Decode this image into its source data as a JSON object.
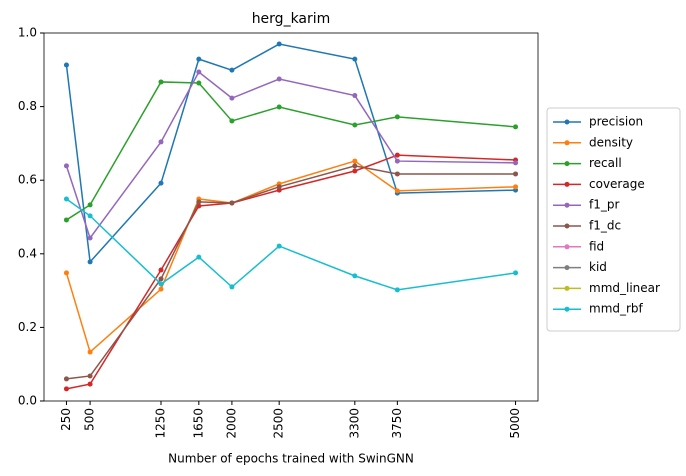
{
  "chart_data": {
    "type": "line",
    "title": "herg_karim",
    "xlabel": "Number of epochs trained with SwinGNN",
    "x": [
      250,
      500,
      1250,
      1650,
      2000,
      2500,
      3300,
      3750,
      5000
    ],
    "xlim": [
      12.5,
      5237.5
    ],
    "xticks": [
      250,
      500,
      1250,
      1650,
      2000,
      2500,
      3300,
      3750,
      5000
    ],
    "ylim": [
      0,
      1
    ],
    "yticks": [
      {
        "value": 0,
        "label": "0.0"
      },
      {
        "value": 0.2,
        "label": "0.2"
      },
      {
        "value": 0.4,
        "label": "0.4"
      },
      {
        "value": 0.6,
        "label": "0.6"
      },
      {
        "value": 0.8,
        "label": "0.8"
      },
      {
        "value": 1,
        "label": "1.0"
      }
    ],
    "legend": "right",
    "series": [
      {
        "name": "precision",
        "color": "#1f77b4",
        "values": [
          0.913,
          0.378,
          0.592,
          0.929,
          0.899,
          0.97,
          0.929,
          0.565,
          0.573
        ]
      },
      {
        "name": "density",
        "color": "#ff7f0e",
        "values": [
          0.348,
          0.133,
          0.304,
          0.549,
          0.538,
          0.59,
          0.652,
          0.571,
          0.582
        ]
      },
      {
        "name": "recall",
        "color": "#2ca02c",
        "values": [
          0.492,
          0.533,
          0.867,
          0.864,
          0.761,
          0.799,
          0.75,
          0.772,
          0.745
        ]
      },
      {
        "name": "coverage",
        "color": "#d62728",
        "values": [
          0.033,
          0.046,
          0.356,
          0.53,
          0.538,
          0.573,
          0.625,
          0.668,
          0.655
        ]
      },
      {
        "name": "f1_pr",
        "color": "#9467bd",
        "values": [
          0.639,
          0.443,
          0.704,
          0.894,
          0.823,
          0.875,
          0.83,
          0.652,
          0.647
        ]
      },
      {
        "name": "f1_dc",
        "color": "#8c564b",
        "values": [
          0.06,
          0.068,
          0.332,
          0.541,
          0.538,
          0.582,
          0.639,
          0.617,
          0.617
        ]
      },
      {
        "name": "fid",
        "color": "#e377c2",
        "values": [
          null,
          null,
          null,
          null,
          null,
          null,
          null,
          null,
          null
        ]
      },
      {
        "name": "kid",
        "color": "#7f7f7f",
        "values": [
          null,
          null,
          null,
          null,
          null,
          null,
          null,
          null,
          null
        ]
      },
      {
        "name": "mmd_linear",
        "color": "#bcbd22",
        "values": [
          null,
          null,
          null,
          null,
          null,
          null,
          null,
          null,
          null
        ]
      },
      {
        "name": "mmd_rbf",
        "color": "#17becf",
        "values": [
          0.549,
          0.503,
          0.318,
          0.391,
          0.31,
          0.421,
          0.34,
          0.302,
          0.348
        ]
      }
    ]
  }
}
